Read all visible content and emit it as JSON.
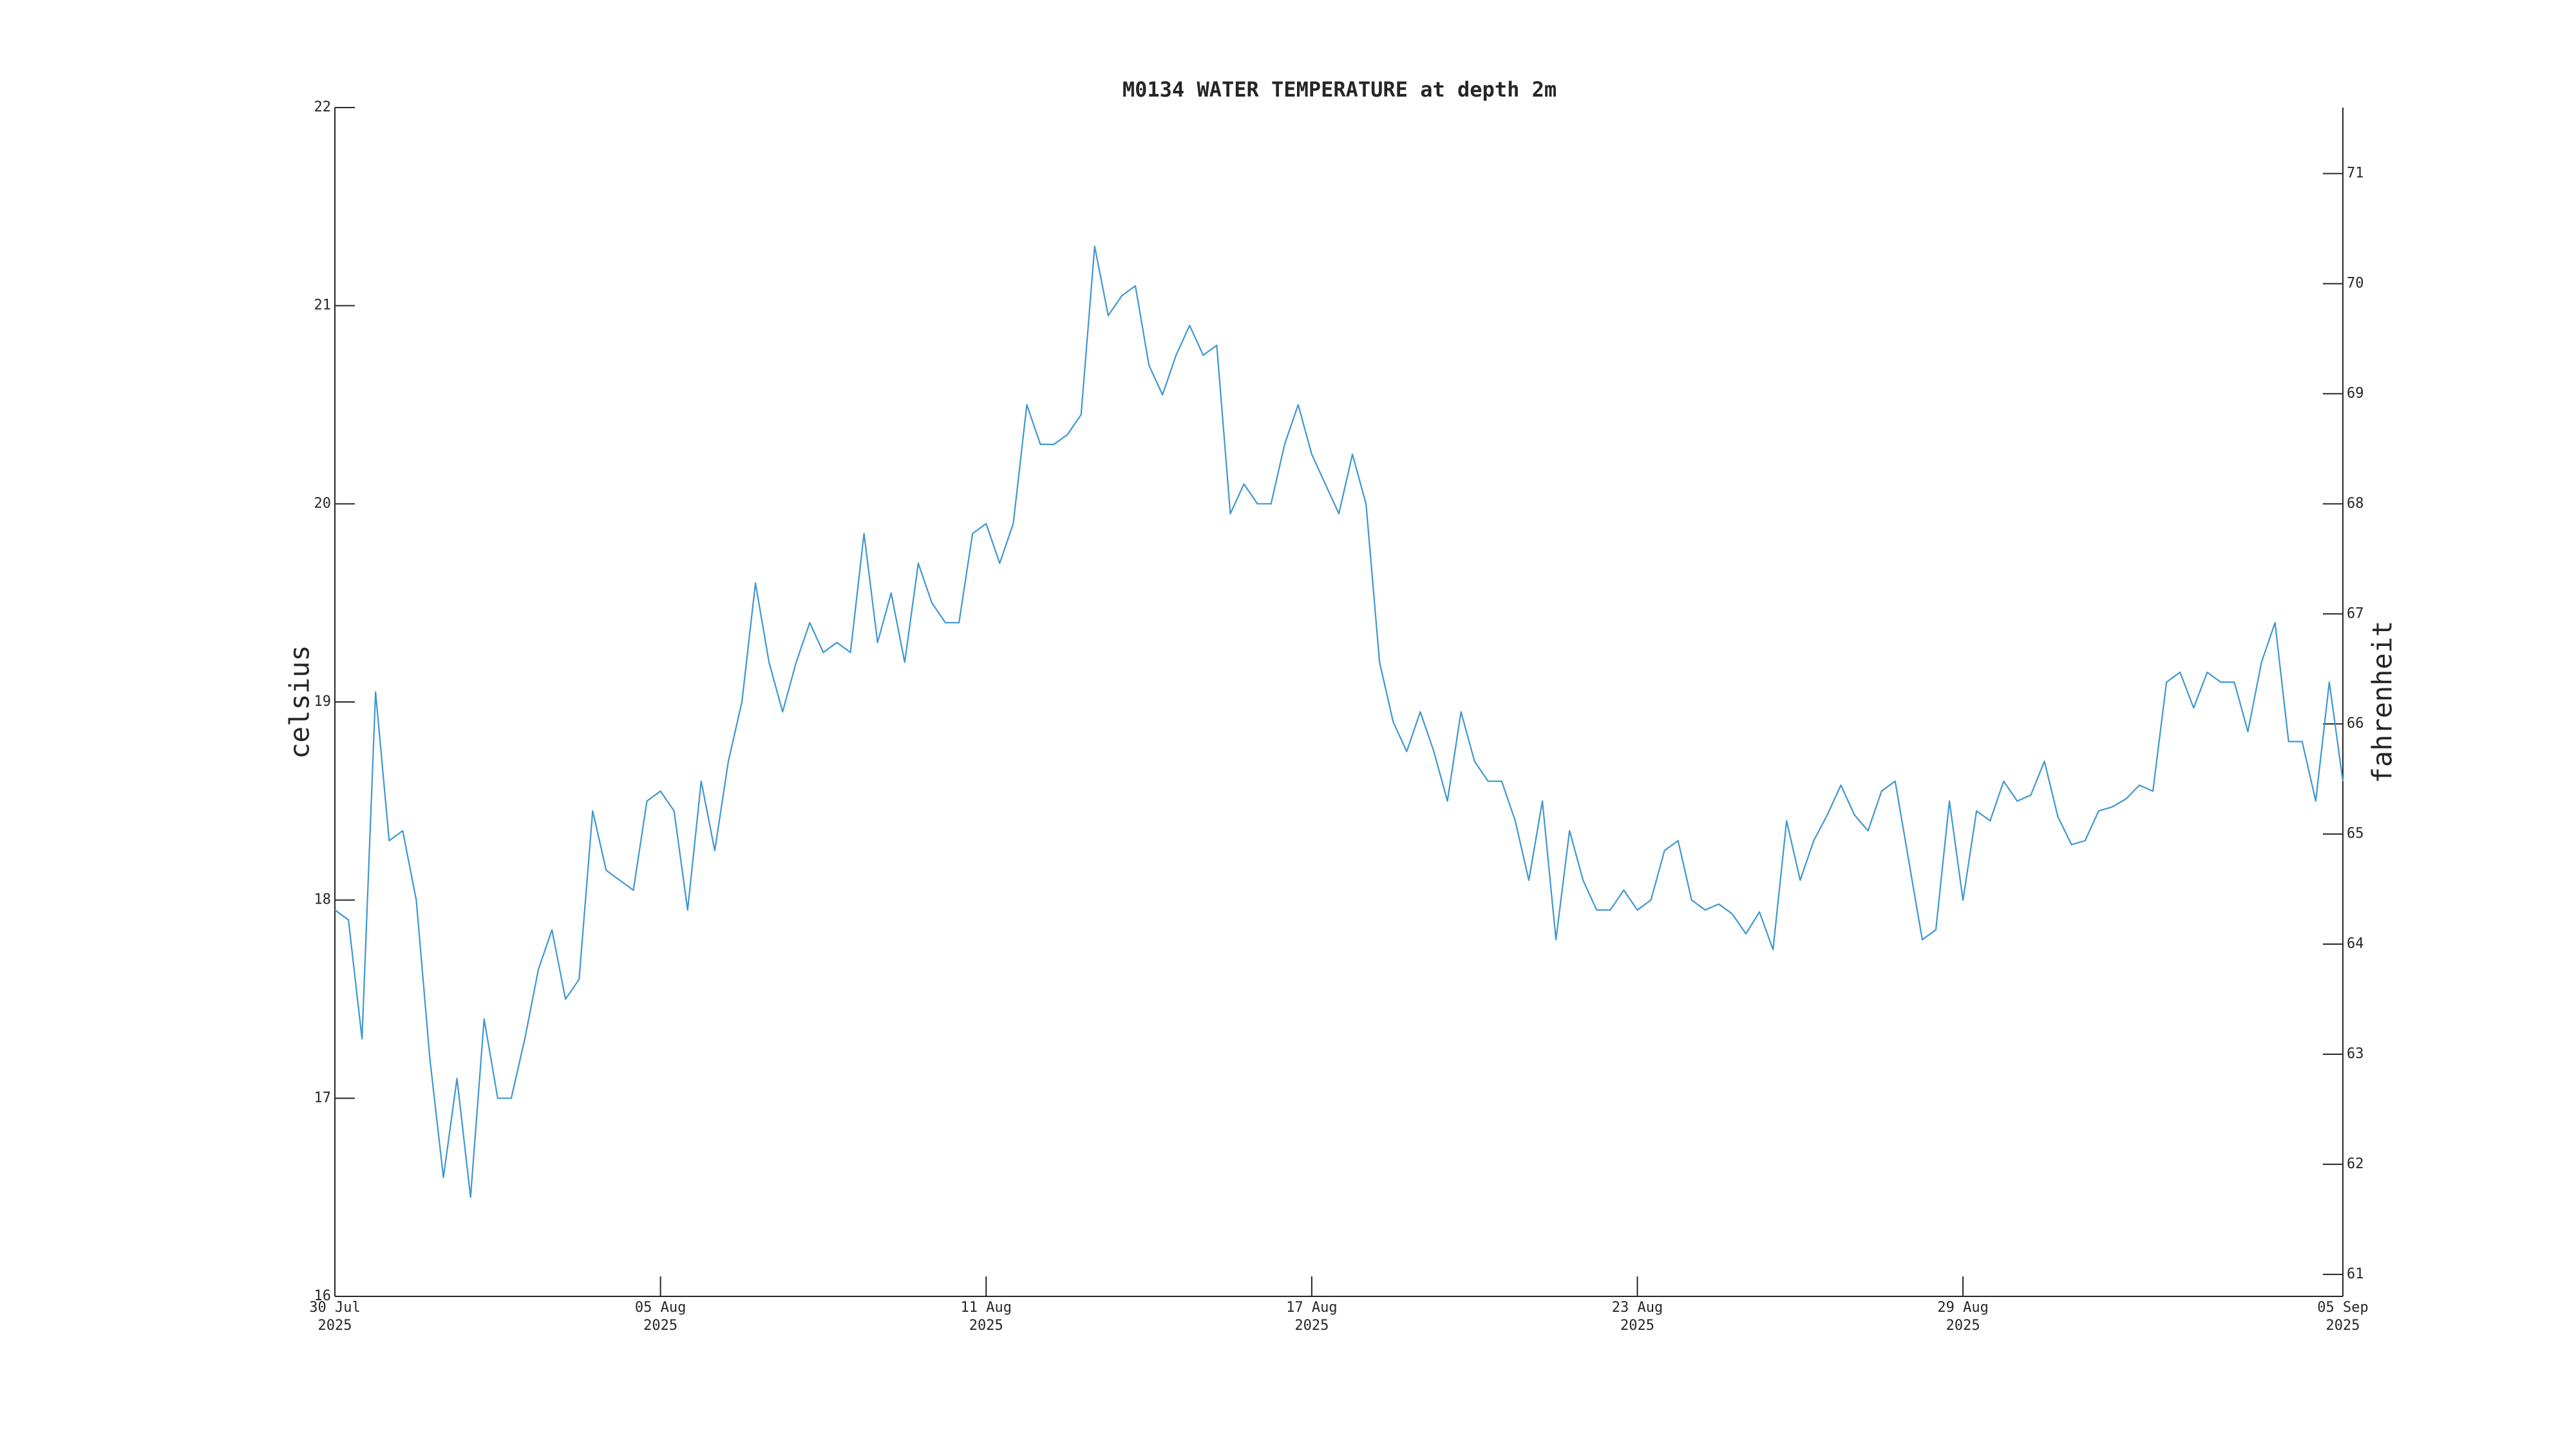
{
  "chart_data": {
    "type": "line",
    "title": "M0134 WATER TEMPERATURE at depth 2m",
    "ylabel": "celsius",
    "y2label": "fahrenheit",
    "color": "#3f97d0",
    "xlim": [
      "2025-07-30T00:00",
      "2025-09-05T00:00"
    ],
    "xticks": [
      {
        "value": "2025-07-30T00:00",
        "label": "30 Jul\n2025"
      },
      {
        "value": "2025-08-05T00:00",
        "label": "05 Aug\n2025"
      },
      {
        "value": "2025-08-11T00:00",
        "label": "11 Aug\n2025"
      },
      {
        "value": "2025-08-17T00:00",
        "label": "17 Aug\n2025"
      },
      {
        "value": "2025-08-23T00:00",
        "label": "23 Aug\n2025"
      },
      {
        "value": "2025-08-29T00:00",
        "label": "29 Aug\n2025"
      },
      {
        "value": "2025-09-05T00:00",
        "label": "05 Sep\n2025"
      }
    ],
    "ylim": [
      16,
      22
    ],
    "yticks": [
      16,
      17,
      18,
      19,
      20,
      21,
      22
    ],
    "y2lim": [
      60.8,
      71.6
    ],
    "y2ticks": [
      61,
      62,
      63,
      64,
      65,
      66,
      67,
      68,
      69,
      70,
      71
    ],
    "x": [
      "2025-07-30T00:00",
      "2025-07-30T06:00",
      "2025-07-30T12:00",
      "2025-07-30T18:00",
      "2025-07-31T00:00",
      "2025-07-31T06:00",
      "2025-07-31T12:00",
      "2025-07-31T18:00",
      "2025-08-01T00:00",
      "2025-08-01T06:00",
      "2025-08-01T12:00",
      "2025-08-01T18:00",
      "2025-08-02T00:00",
      "2025-08-02T06:00",
      "2025-08-02T12:00",
      "2025-08-02T18:00",
      "2025-08-03T00:00",
      "2025-08-03T06:00",
      "2025-08-03T12:00",
      "2025-08-03T18:00",
      "2025-08-04T00:00",
      "2025-08-04T06:00",
      "2025-08-04T12:00",
      "2025-08-04T18:00",
      "2025-08-05T00:00",
      "2025-08-05T06:00",
      "2025-08-05T12:00",
      "2025-08-05T18:00",
      "2025-08-06T00:00",
      "2025-08-06T06:00",
      "2025-08-06T12:00",
      "2025-08-06T18:00",
      "2025-08-07T00:00",
      "2025-08-07T06:00",
      "2025-08-07T12:00",
      "2025-08-07T18:00",
      "2025-08-08T00:00",
      "2025-08-08T06:00",
      "2025-08-08T12:00",
      "2025-08-08T18:00",
      "2025-08-09T00:00",
      "2025-08-09T06:00",
      "2025-08-09T12:00",
      "2025-08-09T18:00",
      "2025-08-10T00:00",
      "2025-08-10T06:00",
      "2025-08-10T12:00",
      "2025-08-10T18:00",
      "2025-08-11T00:00",
      "2025-08-11T06:00",
      "2025-08-11T12:00",
      "2025-08-11T18:00",
      "2025-08-12T00:00",
      "2025-08-12T06:00",
      "2025-08-12T12:00",
      "2025-08-12T18:00",
      "2025-08-13T00:00",
      "2025-08-13T06:00",
      "2025-08-13T12:00",
      "2025-08-13T18:00",
      "2025-08-14T00:00",
      "2025-08-14T06:00",
      "2025-08-14T12:00",
      "2025-08-14T18:00",
      "2025-08-15T00:00",
      "2025-08-15T06:00",
      "2025-08-15T12:00",
      "2025-08-15T18:00",
      "2025-08-16T00:00",
      "2025-08-16T06:00",
      "2025-08-16T12:00",
      "2025-08-16T18:00",
      "2025-08-17T00:00",
      "2025-08-17T06:00",
      "2025-08-17T12:00",
      "2025-08-17T18:00",
      "2025-08-18T00:00",
      "2025-08-18T06:00",
      "2025-08-18T12:00",
      "2025-08-18T18:00",
      "2025-08-19T00:00",
      "2025-08-19T06:00",
      "2025-08-19T12:00",
      "2025-08-19T18:00",
      "2025-08-20T00:00",
      "2025-08-20T06:00",
      "2025-08-20T12:00",
      "2025-08-20T18:00",
      "2025-08-21T00:00",
      "2025-08-21T06:00",
      "2025-08-21T12:00",
      "2025-08-21T18:00",
      "2025-08-22T00:00",
      "2025-08-22T06:00",
      "2025-08-22T12:00",
      "2025-08-22T18:00",
      "2025-08-23T00:00",
      "2025-08-23T06:00",
      "2025-08-23T12:00",
      "2025-08-23T18:00",
      "2025-08-24T00:00",
      "2025-08-24T06:00",
      "2025-08-24T12:00",
      "2025-08-24T18:00",
      "2025-08-25T00:00",
      "2025-08-25T06:00",
      "2025-08-25T12:00",
      "2025-08-25T18:00",
      "2025-08-26T00:00",
      "2025-08-26T06:00",
      "2025-08-26T12:00",
      "2025-08-26T18:00",
      "2025-08-27T00:00",
      "2025-08-27T06:00",
      "2025-08-27T12:00",
      "2025-08-27T18:00",
      "2025-08-28T00:00",
      "2025-08-28T06:00",
      "2025-08-28T12:00",
      "2025-08-28T18:00",
      "2025-08-29T00:00",
      "2025-08-29T06:00",
      "2025-08-29T12:00",
      "2025-08-29T18:00",
      "2025-08-30T00:00",
      "2025-08-30T06:00",
      "2025-08-30T12:00",
      "2025-08-30T18:00",
      "2025-08-31T00:00",
      "2025-08-31T06:00",
      "2025-08-31T12:00",
      "2025-08-31T18:00",
      "2025-09-01T00:00",
      "2025-09-01T06:00",
      "2025-09-01T12:00",
      "2025-09-01T18:00",
      "2025-09-02T00:00",
      "2025-09-02T06:00",
      "2025-09-02T12:00",
      "2025-09-02T18:00",
      "2025-09-03T00:00",
      "2025-09-03T06:00",
      "2025-09-03T12:00",
      "2025-09-03T18:00",
      "2025-09-04T00:00",
      "2025-09-04T06:00",
      "2025-09-04T12:00",
      "2025-09-04T18:00",
      "2025-09-05T00:00"
    ],
    "values": [
      17.95,
      17.9,
      17.3,
      19.05,
      18.3,
      18.35,
      18.0,
      17.2,
      16.6,
      17.1,
      16.5,
      17.4,
      17.0,
      17.0,
      17.3,
      17.65,
      17.85,
      17.5,
      17.6,
      18.45,
      18.15,
      18.1,
      18.05,
      18.5,
      18.55,
      18.45,
      17.95,
      18.6,
      18.25,
      18.7,
      19.0,
      19.6,
      19.2,
      18.95,
      19.2,
      19.4,
      19.25,
      19.3,
      19.25,
      19.85,
      19.3,
      19.55,
      19.2,
      19.7,
      19.5,
      19.4,
      19.4,
      19.85,
      19.9,
      19.7,
      19.9,
      20.5,
      20.3,
      20.3,
      20.35,
      20.45,
      21.3,
      20.95,
      21.05,
      21.1,
      20.7,
      20.55,
      20.75,
      20.9,
      20.75,
      20.8,
      19.95,
      20.1,
      20.0,
      20.0,
      20.3,
      20.5,
      20.25,
      20.1,
      19.95,
      20.25,
      20.0,
      19.2,
      18.9,
      18.75,
      18.95,
      18.75,
      18.5,
      18.95,
      18.7,
      18.6,
      18.6,
      18.4,
      18.1,
      18.5,
      17.8,
      18.35,
      18.1,
      17.95,
      17.95,
      18.05,
      17.95,
      18.0,
      18.25,
      18.3,
      18.0,
      17.95,
      17.98,
      17.93,
      17.83,
      17.94,
      17.75,
      18.4,
      18.1,
      18.3,
      18.43,
      18.58,
      18.43,
      18.35,
      18.55,
      18.6,
      18.2,
      17.8,
      17.85,
      18.5,
      18.0,
      18.45,
      18.4,
      18.6,
      18.5,
      18.53,
      18.7,
      18.42,
      18.28,
      18.3,
      18.45,
      18.47,
      18.51,
      18.58,
      18.55,
      19.1,
      19.15,
      18.97,
      19.15,
      19.1,
      19.1,
      18.85,
      19.2,
      19.4,
      18.8,
      18.8,
      18.5,
      19.1,
      18.6
    ]
  }
}
